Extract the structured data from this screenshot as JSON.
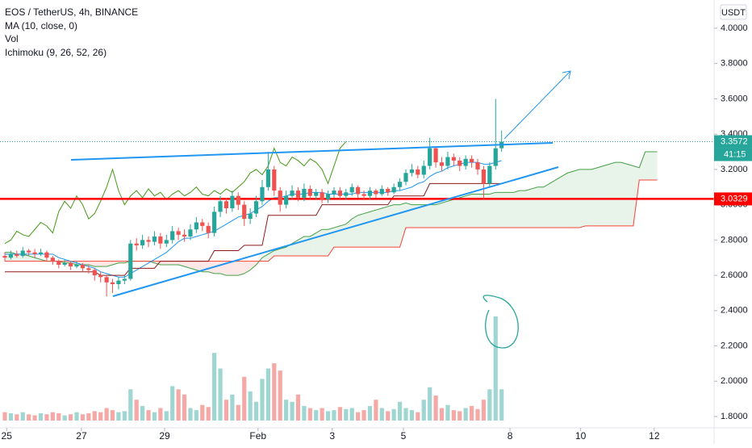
{
  "chart_data": {
    "type": "candlestick",
    "title": "EOS / TetherUS, 4h, BINANCE",
    "legend": [
      "MA (10, close, 0)",
      "Vol",
      "Ichimoku (9, 26, 52, 26)"
    ],
    "currency": "USDT",
    "up_color": "#26a69a",
    "down_color": "#ef5350",
    "volume_up_color": "#9fd6d1",
    "volume_down_color": "#f5a9a7",
    "open": [
      2.71,
      2.7,
      2.72,
      2.71,
      2.74,
      2.73,
      2.72,
      2.73,
      2.7,
      2.68,
      2.66,
      2.67,
      2.65,
      2.66,
      2.64,
      2.63,
      2.6,
      2.59,
      2.56,
      2.55,
      2.57,
      2.58,
      2.78,
      2.77,
      2.8,
      2.79,
      2.82,
      2.78,
      2.8,
      2.85,
      2.83,
      2.82,
      2.86,
      2.9,
      2.88,
      2.84,
      2.96,
      3.02,
      2.98,
      3.05,
      3.0,
      2.92,
      2.95,
      3.02,
      3.1,
      3.2,
      3.08,
      3.0,
      3.05,
      3.08,
      3.04,
      3.09,
      3.05,
      3.07,
      3.03,
      3.06,
      3.08,
      3.05,
      3.07,
      3.1,
      3.06,
      3.05,
      3.08,
      3.06,
      3.09,
      3.07,
      3.1,
      3.13,
      3.18,
      3.2,
      3.17,
      3.22,
      3.32,
      3.24,
      3.22,
      3.27,
      3.25,
      3.22,
      3.26,
      3.24,
      3.2,
      3.12,
      3.22,
      3.32
    ],
    "high": [
      2.73,
      2.74,
      2.74,
      2.76,
      2.75,
      2.75,
      2.75,
      2.74,
      2.71,
      2.69,
      2.69,
      2.68,
      2.68,
      2.67,
      2.66,
      2.64,
      2.62,
      2.6,
      2.58,
      2.59,
      2.6,
      2.8,
      2.81,
      2.83,
      2.82,
      2.85,
      2.84,
      2.83,
      2.88,
      2.87,
      2.86,
      2.89,
      2.93,
      2.92,
      2.9,
      2.99,
      3.05,
      3.04,
      3.08,
      3.07,
      3.02,
      2.98,
      3.05,
      3.14,
      3.3,
      3.22,
      3.1,
      3.08,
      3.11,
      3.1,
      3.12,
      3.11,
      3.09,
      3.09,
      3.08,
      3.1,
      3.1,
      3.09,
      3.12,
      3.11,
      3.08,
      3.1,
      3.09,
      3.11,
      3.1,
      3.12,
      3.15,
      3.2,
      3.23,
      3.22,
      3.25,
      3.38,
      3.33,
      3.27,
      3.3,
      3.29,
      3.27,
      3.28,
      3.28,
      3.26,
      3.22,
      3.24,
      3.6,
      3.42
    ],
    "low": [
      2.68,
      2.69,
      2.7,
      2.7,
      2.71,
      2.7,
      2.71,
      2.68,
      2.66,
      2.64,
      2.65,
      2.63,
      2.64,
      2.62,
      2.61,
      2.57,
      2.56,
      2.48,
      2.5,
      2.52,
      2.55,
      2.57,
      2.74,
      2.75,
      2.76,
      2.77,
      2.75,
      2.76,
      2.78,
      2.8,
      2.79,
      2.8,
      2.84,
      2.85,
      2.81,
      2.82,
      2.93,
      2.95,
      2.96,
      2.97,
      2.88,
      2.89,
      2.93,
      3.0,
      3.08,
      3.05,
      2.96,
      2.98,
      3.03,
      3.02,
      3.02,
      3.03,
      3.03,
      3.01,
      3.01,
      3.04,
      3.03,
      3.03,
      3.05,
      3.04,
      3.03,
      3.03,
      3.04,
      3.05,
      3.05,
      3.06,
      3.08,
      3.11,
      3.16,
      3.15,
      3.15,
      3.2,
      3.21,
      3.19,
      3.2,
      3.22,
      3.19,
      3.2,
      3.21,
      3.17,
      3.03,
      3.1,
      3.2,
      3.3
    ],
    "close": [
      2.7,
      2.72,
      2.71,
      2.74,
      2.73,
      2.72,
      2.73,
      2.7,
      2.68,
      2.66,
      2.67,
      2.65,
      2.66,
      2.64,
      2.63,
      2.6,
      2.59,
      2.56,
      2.55,
      2.57,
      2.58,
      2.78,
      2.77,
      2.8,
      2.79,
      2.82,
      2.78,
      2.8,
      2.85,
      2.83,
      2.82,
      2.86,
      2.9,
      2.88,
      2.84,
      2.96,
      3.02,
      2.98,
      3.05,
      3.0,
      2.92,
      2.95,
      3.02,
      3.1,
      3.2,
      3.08,
      3.0,
      3.05,
      3.08,
      3.04,
      3.09,
      3.05,
      3.07,
      3.03,
      3.06,
      3.08,
      3.05,
      3.07,
      3.1,
      3.06,
      3.05,
      3.08,
      3.06,
      3.09,
      3.07,
      3.1,
      3.13,
      3.18,
      3.2,
      3.17,
      3.22,
      3.32,
      3.24,
      3.22,
      3.27,
      3.25,
      3.22,
      3.26,
      3.24,
      3.2,
      3.12,
      3.22,
      3.32,
      3.3572
    ],
    "volume": [
      8,
      7,
      6,
      8,
      6,
      5,
      7,
      6,
      8,
      7,
      5,
      6,
      8,
      6,
      7,
      9,
      8,
      12,
      10,
      8,
      9,
      30,
      20,
      14,
      10,
      8,
      12,
      9,
      33,
      30,
      25,
      12,
      10,
      15,
      13,
      65,
      50,
      20,
      25,
      15,
      42,
      28,
      18,
      40,
      50,
      55,
      48,
      20,
      18,
      25,
      14,
      12,
      10,
      12,
      9,
      10,
      13,
      11,
      12,
      8,
      10,
      14,
      20,
      12,
      9,
      11,
      18,
      12,
      10,
      8,
      20,
      32,
      24,
      12,
      15,
      10,
      9,
      12,
      14,
      11,
      20,
      30,
      100,
      30
    ],
    "volume_lim": [
      0,
      100
    ],
    "series": [
      {
        "color": "#2196f3",
        "values": [
          2.72,
          2.72,
          2.72,
          2.72,
          2.72,
          2.72,
          2.72,
          2.72,
          2.72,
          2.7,
          2.69,
          2.68,
          2.67,
          2.66,
          2.65,
          2.64,
          2.62,
          2.61,
          2.6,
          2.59,
          2.59,
          2.61,
          2.63,
          2.65,
          2.67,
          2.69,
          2.71,
          2.73,
          2.76,
          2.79,
          2.81,
          2.81,
          2.82,
          2.83,
          2.84,
          2.85,
          2.87,
          2.89,
          2.91,
          2.93,
          2.94,
          2.95,
          2.97,
          2.99,
          3.02,
          3.04,
          3.04,
          3.05,
          3.06,
          3.06,
          3.06,
          3.07,
          3.07,
          3.07,
          3.06,
          3.06,
          3.06,
          3.06,
          3.06,
          3.07,
          3.07,
          3.07,
          3.07,
          3.07,
          3.07,
          3.08,
          3.08,
          3.09,
          3.1,
          3.12,
          3.13,
          3.16,
          3.18,
          3.19,
          3.21,
          3.22,
          3.23,
          3.24,
          3.24,
          3.24,
          3.23,
          3.23,
          3.24,
          3.25
        ]
      },
      {
        "color": "#8b1a1a",
        "values": [
          2.62,
          2.62,
          2.62,
          2.62,
          2.62,
          2.62,
          2.62,
          2.62,
          2.62,
          2.62,
          2.62,
          2.62,
          2.62,
          2.62,
          2.62,
          2.62,
          2.6,
          2.6,
          2.6,
          2.6,
          2.6,
          2.64,
          2.64,
          2.64,
          2.64,
          2.64,
          2.68,
          2.68,
          2.68,
          2.68,
          2.68,
          2.68,
          2.68,
          2.68,
          2.68,
          2.74,
          2.74,
          2.74,
          2.74,
          2.74,
          2.77,
          2.77,
          2.77,
          2.77,
          2.94,
          2.94,
          2.94,
          2.94,
          2.94,
          2.94,
          2.94,
          2.94,
          2.94,
          3.0,
          3.0,
          3.0,
          3.0,
          3.0,
          3.0,
          3.0,
          3.0,
          3.0,
          3.0,
          3.0,
          3.0,
          3.05,
          3.05,
          3.05,
          3.05,
          3.05,
          3.05,
          3.12,
          3.12,
          3.12,
          3.12,
          3.12,
          3.12,
          3.12,
          3.12,
          3.12,
          3.12,
          3.12,
          3.12,
          3.12
        ]
      },
      {
        "color": "#459915",
        "values": [
          2.78,
          2.8,
          2.85,
          2.83,
          2.82,
          2.86,
          2.9,
          2.88,
          2.84,
          2.96,
          3.02,
          2.98,
          3.05,
          3.0,
          2.92,
          2.95,
          3.02,
          3.1,
          3.2,
          3.08,
          3.0,
          3.05,
          3.08,
          3.04,
          3.09,
          3.05,
          3.07,
          3.03,
          3.06,
          3.08,
          3.05,
          3.07,
          3.1,
          3.06,
          3.05,
          3.08,
          3.06,
          3.09,
          3.07,
          3.1,
          3.13,
          3.18,
          3.2,
          3.17,
          3.22,
          3.32,
          3.24,
          3.22,
          3.27,
          3.25,
          3.22,
          3.26,
          3.24,
          3.2,
          3.12,
          3.22,
          3.32,
          3.3572
        ]
      }
    ],
    "span_a": {
      "color": "#43a047",
      "values": [
        2.73,
        2.73,
        2.72,
        2.72,
        2.71,
        2.7,
        2.69,
        2.68,
        2.68,
        2.68,
        2.67,
        2.67,
        2.66,
        2.66,
        2.66,
        2.65,
        2.65,
        2.65,
        2.66,
        2.67,
        2.67,
        2.68,
        2.68,
        2.68,
        2.68,
        2.67,
        2.66,
        2.66,
        2.66,
        2.66,
        2.65,
        2.64,
        2.63,
        2.62,
        2.62,
        2.61,
        2.61,
        2.6,
        2.6,
        2.6,
        2.61,
        2.63,
        2.66,
        2.7,
        2.72,
        2.74,
        2.75,
        2.76,
        2.78,
        2.8,
        2.82,
        2.82,
        2.84,
        2.86,
        2.86,
        2.87,
        2.88,
        2.89,
        2.92,
        2.94,
        2.95,
        2.96,
        2.97,
        2.98,
        2.99,
        3.0,
        3.0,
        3.01,
        3.0,
        3.0,
        3.0,
        3.0,
        3.0,
        3.01,
        3.02,
        3.03,
        3.04,
        3.05,
        3.06,
        3.06,
        3.06,
        3.06,
        3.07,
        3.07,
        3.07,
        3.07,
        3.08,
        3.08,
        3.09,
        3.1,
        3.1,
        3.12,
        3.14,
        3.16,
        3.18,
        3.19,
        3.2,
        3.2,
        3.2,
        3.21,
        3.22,
        3.23,
        3.24,
        3.24,
        3.23,
        3.22,
        3.21,
        3.3,
        3.3,
        3.3
      ]
    },
    "span_b": {
      "color": "#f44336",
      "values": [
        2.68,
        2.68,
        2.68,
        2.68,
        2.68,
        2.68,
        2.68,
        2.68,
        2.68,
        2.68,
        2.68,
        2.68,
        2.68,
        2.68,
        2.68,
        2.68,
        2.68,
        2.68,
        2.68,
        2.68,
        2.68,
        2.68,
        2.68,
        2.68,
        2.68,
        2.68,
        2.68,
        2.68,
        2.68,
        2.68,
        2.68,
        2.68,
        2.68,
        2.68,
        2.68,
        2.68,
        2.68,
        2.68,
        2.68,
        2.68,
        2.68,
        2.68,
        2.68,
        2.68,
        2.68,
        2.71,
        2.71,
        2.71,
        2.71,
        2.71,
        2.71,
        2.71,
        2.71,
        2.71,
        2.71,
        2.76,
        2.76,
        2.76,
        2.76,
        2.76,
        2.76,
        2.76,
        2.76,
        2.76,
        2.76,
        2.76,
        2.76,
        2.87,
        2.87,
        2.87,
        2.87,
        2.87,
        2.87,
        2.87,
        2.87,
        2.87,
        2.87,
        2.87,
        2.87,
        2.87,
        2.87,
        2.87,
        2.87,
        2.87,
        2.87,
        2.87,
        2.87,
        2.87,
        2.87,
        2.87,
        2.87,
        2.87,
        2.87,
        2.87,
        2.87,
        2.87,
        2.87,
        2.88,
        2.88,
        2.88,
        2.88,
        2.88,
        2.88,
        2.88,
        2.88,
        2.88,
        3.14,
        3.14,
        3.14,
        3.14
      ]
    },
    "cloud_up_color": "#43a047",
    "cloud_down_color": "#f44336",
    "price_line": 3.3572,
    "countdown": "41:15",
    "level": 3.0329,
    "level_color": "#ff0000",
    "ylim": [
      1.736,
      4.16
    ],
    "yticks": [
      {
        "value": 1.8,
        "label": "1.8000"
      },
      {
        "value": 2,
        "label": "2.0000"
      },
      {
        "value": 2.2,
        "label": "2.2000"
      },
      {
        "value": 2.4,
        "label": "2.4000"
      },
      {
        "value": 2.6,
        "label": "2.6000"
      },
      {
        "value": 2.8,
        "label": "2.8000"
      },
      {
        "value": 3,
        "label": "3.0000"
      },
      {
        "value": 3.2,
        "label": "3.2000"
      },
      {
        "value": 3.4,
        "label": "3.4000"
      },
      {
        "value": 3.6,
        "label": "3.6000"
      },
      {
        "value": 3.8,
        "label": "3.8000"
      },
      {
        "value": 4,
        "label": "4.0000"
      }
    ],
    "xlim": [
      -0.81,
      118.5
    ],
    "xticks": [
      {
        "value": 0.3,
        "label": "25"
      },
      {
        "value": 12.8,
        "label": "27"
      },
      {
        "value": 26.7,
        "label": "29"
      },
      {
        "value": 42.3,
        "label": "Feb"
      },
      {
        "value": 54.7,
        "label": "3"
      },
      {
        "value": 66.6,
        "label": "5"
      },
      {
        "value": 84.4,
        "label": "8"
      },
      {
        "value": 96.2,
        "label": "10"
      },
      {
        "value": 108.5,
        "label": "12"
      }
    ]
  }
}
